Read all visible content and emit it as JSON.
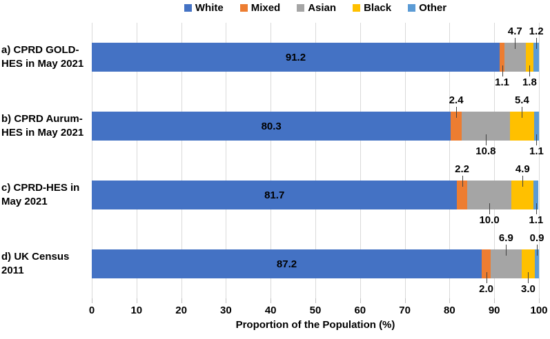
{
  "chart_data": {
    "type": "bar",
    "subtype": "horizontal-stacked",
    "title": "",
    "xlabel": "Proportion of the Population (%)",
    "ylabel": "",
    "xlim": [
      0,
      100
    ],
    "xticks": [
      0,
      10,
      20,
      30,
      40,
      50,
      60,
      70,
      80,
      90,
      100
    ],
    "grid": true,
    "legend_position": "top",
    "series_names": [
      "White",
      "Mixed",
      "Asian",
      "Black",
      "Other"
    ],
    "series_colors": [
      "#4472C4",
      "#ED7D31",
      "#A5A5A5",
      "#FFC000",
      "#5B9BD5"
    ],
    "categories": [
      {
        "label_lines": [
          "a) CPRD GOLD-",
          "HES in May 2021"
        ],
        "values": [
          91.2,
          1.1,
          4.7,
          1.8,
          1.2
        ],
        "label_positions": [
          "inside",
          "below",
          "above",
          "below",
          "above"
        ]
      },
      {
        "label_lines": [
          "b) CPRD Aurum-",
          "HES in May 2021"
        ],
        "values": [
          80.3,
          2.4,
          10.8,
          5.4,
          1.1
        ],
        "label_positions": [
          "inside",
          "above",
          "below",
          "above",
          "below"
        ]
      },
      {
        "label_lines": [
          "c) CPRD-HES in",
          "May 2021"
        ],
        "values": [
          81.7,
          2.2,
          10.0,
          4.9,
          1.1
        ],
        "label_positions": [
          "inside",
          "above",
          "below",
          "above",
          "below"
        ]
      },
      {
        "label_lines": [
          "d) UK Census",
          "2011"
        ],
        "values": [
          87.2,
          2.0,
          6.9,
          3.0,
          0.9
        ],
        "label_positions": [
          "inside",
          "below",
          "above",
          "below",
          "above"
        ]
      }
    ]
  },
  "colors": {
    "gridline": "#D9D9D9",
    "tickmark": "#BFBFBF",
    "leader": "#404040",
    "text": "#000000",
    "background": "#FFFFFF"
  }
}
